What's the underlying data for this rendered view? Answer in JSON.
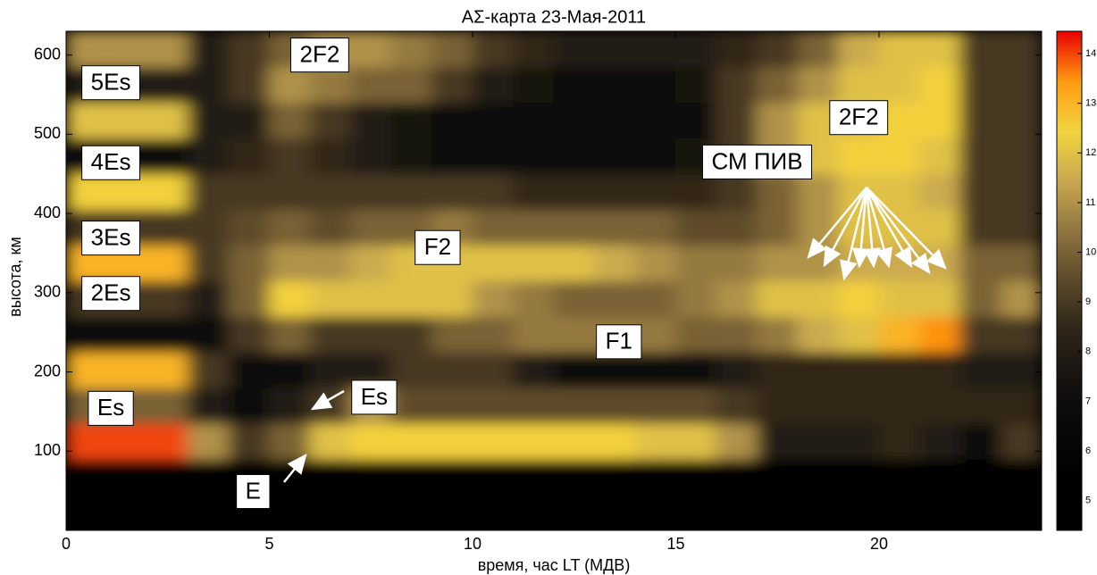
{
  "chart_data": {
    "type": "heatmap",
    "title": "AΣ-карта 23-Мая-2011",
    "x_label": "время, час LT (МДВ)",
    "y_label": "высота, км",
    "xlim": [
      0,
      24
    ],
    "xticks": [
      0,
      5,
      10,
      15,
      20
    ],
    "ylim": [
      0,
      630
    ],
    "yticks": [
      100,
      200,
      300,
      400,
      500,
      600
    ],
    "clim": [
      4.4,
      14.45
    ],
    "cticks": [
      5,
      6,
      7,
      8,
      9,
      10,
      11,
      12,
      13,
      14
    ],
    "colormap": [
      "#000000",
      "#000000",
      "#080808",
      "#151210",
      "#2e2518",
      "#5a4828",
      "#907540",
      "#c9a850",
      "#f2d440",
      "#ff9a10",
      "#e80000"
    ],
    "xbins": [
      0,
      1,
      2,
      3,
      4,
      5,
      6,
      7,
      8,
      9,
      10,
      11,
      12,
      13,
      14,
      15,
      16,
      17,
      18,
      19,
      20,
      21,
      22,
      23,
      24
    ],
    "ybins": [
      0,
      45,
      90,
      135,
      180,
      225,
      270,
      315,
      360,
      405,
      450,
      495,
      540,
      585,
      630
    ],
    "z": [
      [
        5,
        5,
        5,
        5,
        5,
        5,
        5,
        5,
        5,
        5,
        5,
        5,
        5,
        5,
        5,
        5,
        5,
        5,
        5,
        5,
        5,
        5,
        5,
        5
      ],
      [
        5,
        5,
        5,
        5,
        5,
        5,
        5,
        5,
        5,
        5,
        5,
        5,
        5,
        5,
        5,
        5,
        5,
        5,
        5,
        5,
        5,
        5,
        5,
        5
      ],
      [
        14,
        14,
        14,
        11,
        9,
        10,
        12,
        12.5,
        12.5,
        12.5,
        12.5,
        12.5,
        12.5,
        12.5,
        12,
        12,
        11,
        8,
        8,
        8,
        8.5,
        8,
        7,
        9
      ],
      [
        10,
        10,
        10,
        8,
        7,
        8,
        9,
        11,
        9.5,
        9.5,
        9.5,
        9.5,
        9.5,
        9.5,
        9.5,
        9.5,
        9,
        8.5,
        8.5,
        8.5,
        8.5,
        8.5,
        8.5,
        8.5
      ],
      [
        13,
        13,
        13,
        9,
        7,
        7,
        8,
        8,
        9,
        9,
        9,
        8,
        7,
        7,
        7,
        7,
        8,
        8.5,
        8.5,
        8.5,
        8.5,
        8.5,
        8,
        8
      ],
      [
        7,
        7,
        7,
        7,
        9,
        10,
        9,
        9,
        9,
        10,
        10,
        10.5,
        10.5,
        10.5,
        10.5,
        10,
        10,
        10.5,
        11.5,
        12,
        13,
        13.5,
        9,
        9
      ],
      [
        9,
        9,
        9,
        8,
        10,
        12.5,
        12,
        12,
        12,
        12,
        11,
        10.5,
        10,
        10,
        10,
        10.5,
        11,
        12,
        12,
        12.5,
        12,
        12,
        10,
        11
      ],
      [
        13,
        13,
        13,
        9,
        10,
        11,
        11,
        11.5,
        12,
        12,
        12,
        12,
        12,
        11.5,
        11,
        10.5,
        10.5,
        11,
        11,
        11.5,
        11.5,
        11.5,
        10,
        10
      ],
      [
        9,
        9,
        9,
        9,
        9.5,
        10,
        9.5,
        10,
        10,
        10.5,
        10,
        10,
        10,
        10,
        10,
        9.5,
        9.5,
        10,
        11,
        12,
        12,
        12,
        9,
        9
      ],
      [
        12.5,
        12.5,
        12.5,
        9,
        9,
        9,
        9,
        9,
        9,
        9,
        9,
        8.5,
        8.5,
        8.5,
        8.5,
        8.5,
        9,
        10,
        11,
        12,
        12,
        11.5,
        9,
        9
      ],
      [
        7,
        7,
        7,
        8,
        8.5,
        9,
        8.5,
        8,
        7.5,
        7,
        7,
        7,
        7,
        7,
        7,
        7.5,
        9,
        11,
        12,
        12.5,
        12.5,
        12,
        9,
        9
      ],
      [
        12,
        12,
        12,
        8,
        8,
        10,
        9,
        8,
        7.5,
        7,
        6.5,
        6.5,
        6.5,
        6.5,
        6.5,
        7,
        9,
        11,
        12,
        12,
        12.5,
        12.5,
        9,
        9
      ],
      [
        8,
        8,
        8,
        8,
        9,
        11,
        10.5,
        10,
        10,
        9,
        8,
        7.5,
        7,
        7,
        7,
        7.5,
        9,
        10,
        11,
        12,
        12,
        12.5,
        9,
        9
      ],
      [
        11,
        11,
        11,
        8,
        9,
        10,
        11,
        11,
        10.5,
        10,
        9,
        8.5,
        8,
        8,
        8,
        8,
        8.5,
        9,
        10,
        11.5,
        12,
        12,
        9,
        9
      ]
    ],
    "annotations": [
      {
        "text": "5Es",
        "x": 1.1,
        "y": 565
      },
      {
        "text": "4Es",
        "x": 1.1,
        "y": 464
      },
      {
        "text": "3Es",
        "x": 1.1,
        "y": 369
      },
      {
        "text": "2Es",
        "x": 1.1,
        "y": 299
      },
      {
        "text": "Es",
        "x": 1.1,
        "y": 154
      },
      {
        "text": "2F2",
        "x": 6.24,
        "y": 600
      },
      {
        "text": "2F2",
        "x": 19.5,
        "y": 521
      },
      {
        "text": "СМ ПИВ",
        "x": 17.0,
        "y": 465
      },
      {
        "text": "F2",
        "x": 9.14,
        "y": 357
      },
      {
        "text": "F1",
        "x": 13.6,
        "y": 238
      },
      {
        "text": "Es",
        "x": 7.58,
        "y": 168
      },
      {
        "text": "E",
        "x": 4.6,
        "y": 49
      }
    ]
  }
}
